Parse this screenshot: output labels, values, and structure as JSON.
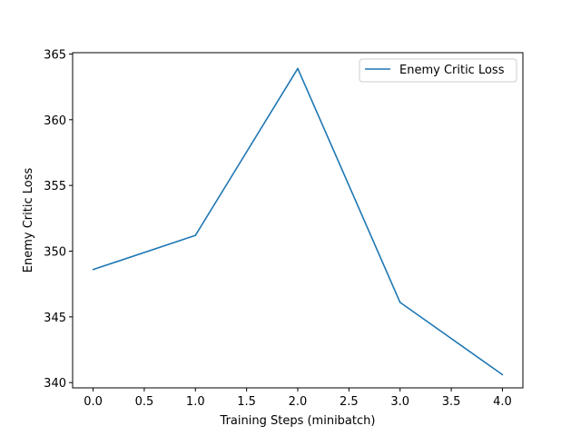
{
  "chart_data": {
    "type": "line",
    "title": "",
    "xlabel": "Training Steps (minibatch)",
    "ylabel": "Enemy Critic Loss",
    "xlim": [
      -0.2,
      4.2
    ],
    "ylim": [
      339.6,
      365.1
    ],
    "xticks": [
      0.0,
      0.5,
      1.0,
      1.5,
      2.0,
      2.5,
      3.0,
      3.5,
      4.0
    ],
    "xtick_labels": [
      "0.0",
      "0.5",
      "1.0",
      "1.5",
      "2.0",
      "2.5",
      "3.0",
      "3.5",
      "4.0"
    ],
    "yticks": [
      340,
      345,
      350,
      355,
      360,
      365
    ],
    "ytick_labels": [
      "340",
      "345",
      "350",
      "355",
      "360",
      "365"
    ],
    "grid": false,
    "legend_position": "upper right",
    "series": [
      {
        "name": "Enemy Critic Loss",
        "color": "#1f77b4",
        "x": [
          0,
          1,
          2,
          3,
          4
        ],
        "values": [
          348.6,
          351.2,
          363.9,
          346.1,
          340.6
        ]
      }
    ]
  }
}
